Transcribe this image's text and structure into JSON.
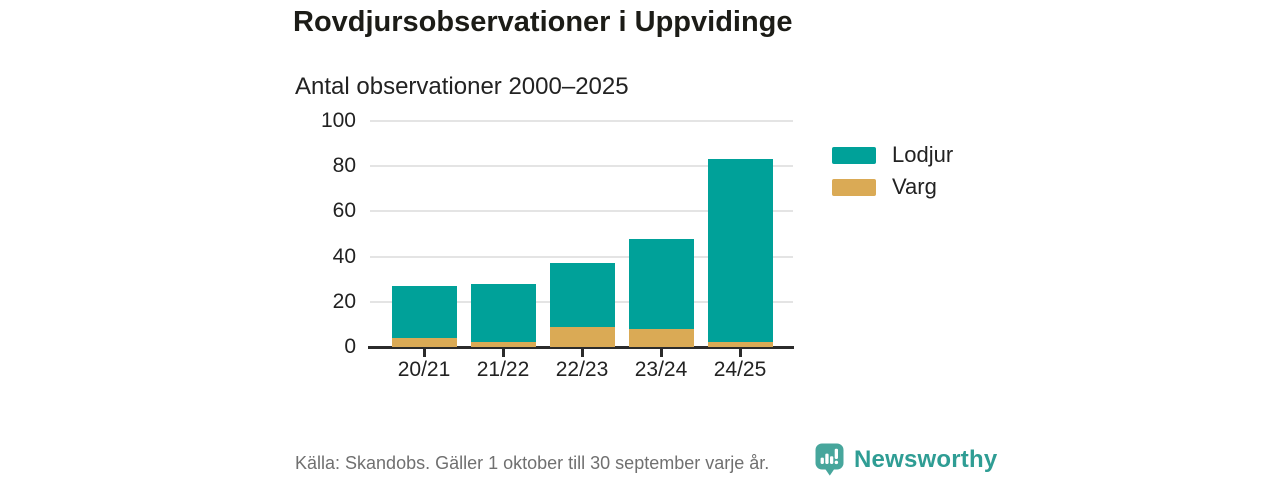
{
  "header": {
    "title": "Rovdjursobservationer i Uppvidinge",
    "subtitle": "Antal observationer 2000–2025"
  },
  "colors": {
    "lodjur": "#00a199",
    "varg": "#daaa55",
    "grid": "#e4e4e4",
    "axis": "#2b2b2b",
    "text": "#222222",
    "muted": "#707070",
    "brand_logo": "#47a69c",
    "brand_text": "#2f9d94"
  },
  "legend": {
    "items": [
      {
        "label": "Lodjur",
        "color": "#00a199"
      },
      {
        "label": "Varg",
        "color": "#daaa55"
      }
    ]
  },
  "chart_data": {
    "type": "bar",
    "stacked": true,
    "title": "Rovdjursobservationer i Uppvidinge",
    "subtitle": "Antal observationer 2000–2025",
    "categories": [
      "20/21",
      "21/22",
      "22/23",
      "23/24",
      "24/25"
    ],
    "series": [
      {
        "name": "Lodjur",
        "color": "#00a199",
        "values": [
          23,
          26,
          28,
          40,
          81
        ]
      },
      {
        "name": "Varg",
        "color": "#daaa55",
        "values": [
          4,
          2,
          9,
          8,
          2
        ]
      }
    ],
    "stack_order_bottom_to_top": [
      "Varg",
      "Lodjur"
    ],
    "totals": [
      27,
      28,
      37,
      48,
      83
    ],
    "xlabel": "",
    "ylabel": "",
    "ylim": [
      0,
      100
    ],
    "yticks": [
      0,
      20,
      40,
      60,
      80,
      100
    ],
    "grid": "horizontal",
    "legend_position": "right"
  },
  "footer": {
    "source": "Källa: Skandobs. Gäller 1 oktober till 30 september varje år.",
    "brand": "Newsworthy"
  }
}
